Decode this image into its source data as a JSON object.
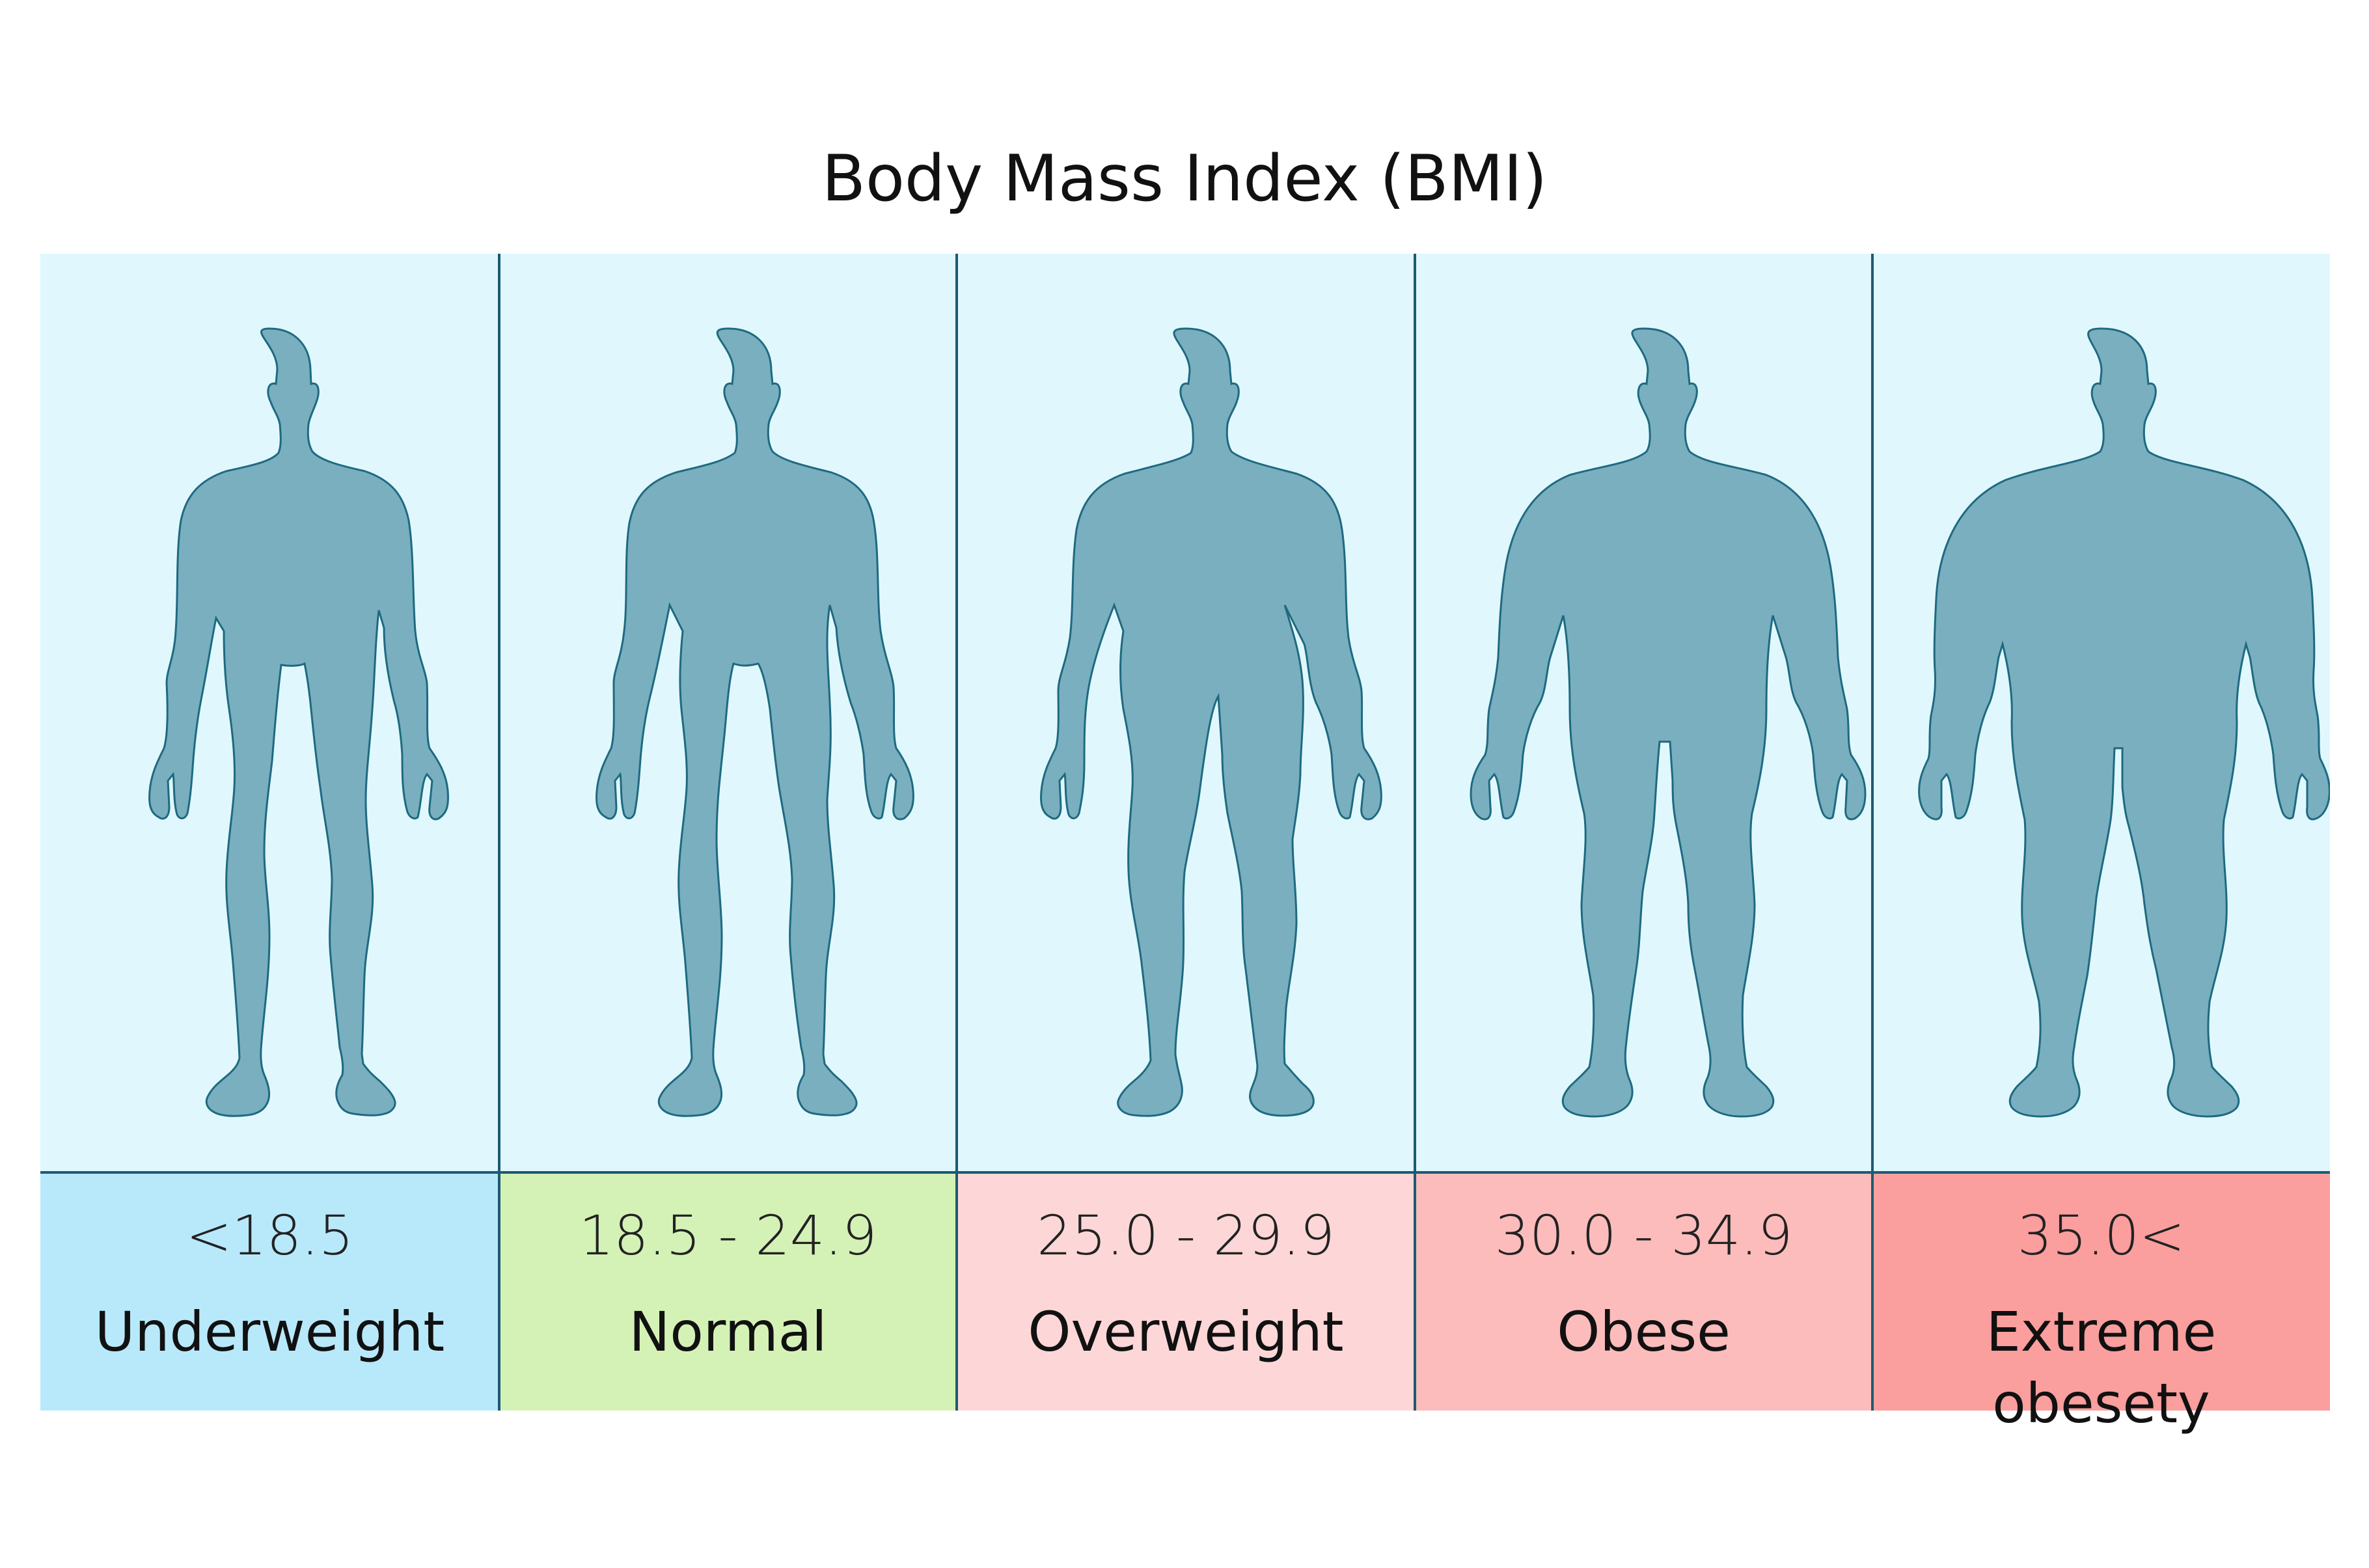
{
  "title": "Body Mass Index (BMI)",
  "colors": {
    "figure_background": "#e0f8fd",
    "silhouette_fill": "#7aafc0",
    "silhouette_stroke": "#1e6a80",
    "divider": "#1c5a72"
  },
  "categories": [
    {
      "range": "<18.5",
      "label": "Underweight",
      "color": "#b8e9fb",
      "build": "thin"
    },
    {
      "range": "18.5 - 24.9",
      "label": "Normal",
      "color": "#d4f2b6",
      "build": "normal"
    },
    {
      "range": "25.0 - 29.9",
      "label": "Overweight",
      "color": "#fdd7d7",
      "build": "overweight"
    },
    {
      "range": "30.0 - 34.9",
      "label": "Obese",
      "color": "#fcbcbc",
      "build": "obese"
    },
    {
      "range": "35.0<",
      "label": "Extreme obesety",
      "color": "#fb9e9e",
      "build": "extreme"
    }
  ]
}
